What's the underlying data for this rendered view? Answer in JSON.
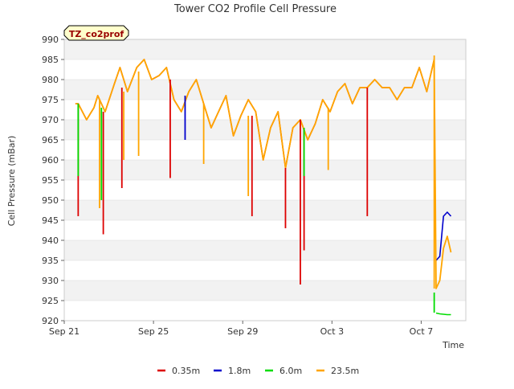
{
  "chart_data": {
    "type": "line",
    "title": "Tower CO2 Profile Cell Pressure",
    "badge": "TZ_co2prof",
    "xlabel": "Time",
    "ylabel": "Cell Pressure (mBar)",
    "ylim": [
      920,
      990
    ],
    "xlim": [
      "2024-09-21",
      "2024-10-09"
    ],
    "x_ticks": [
      "Sep 21",
      "Sep 25",
      "Sep 29",
      "Oct 3",
      "Oct 7"
    ],
    "x_tick_dates": [
      "2024-09-21",
      "2024-09-25",
      "2024-09-29",
      "2024-10-03",
      "2024-10-07"
    ],
    "y_ticks": [
      920,
      925,
      930,
      935,
      940,
      945,
      950,
      955,
      960,
      965,
      970,
      975,
      980,
      985,
      990
    ],
    "grid": true,
    "legend_position": "bottom",
    "colors": {
      "badge_bg": "#ffffcc",
      "badge_text": "#990000",
      "band": "#f2f2f2",
      "grid": "#dcdcdc"
    },
    "series": [
      {
        "name": "0.35m",
        "color": "#dd0000",
        "x": [
          "2024-09-21 12:00",
          "2024-09-21 15:00",
          "2024-09-22 00:00",
          "2024-09-22 08:00",
          "2024-09-22 12:00",
          "2024-09-22 20:00",
          "2024-09-23 06:00",
          "2024-09-23 12:00",
          "2024-09-23 20:00",
          "2024-09-24 06:00",
          "2024-09-24 14:00",
          "2024-09-24 22:00",
          "2024-09-25 06:00",
          "2024-09-25 14:00",
          "2024-09-25 22:00",
          "2024-09-26 06:00",
          "2024-09-26 14:00",
          "2024-09-26 22:00",
          "2024-09-27 06:00",
          "2024-09-27 14:00",
          "2024-09-27 22:00",
          "2024-09-28 06:00",
          "2024-09-28 14:00",
          "2024-09-28 22:00",
          "2024-09-29 06:00",
          "2024-09-29 14:00",
          "2024-09-29 22:00",
          "2024-09-30 06:00",
          "2024-09-30 14:00",
          "2024-09-30 22:00",
          "2024-10-01 06:00",
          "2024-10-01 14:00",
          "2024-10-01 22:00",
          "2024-10-02 06:00",
          "2024-10-02 14:00",
          "2024-10-02 22:00",
          "2024-10-03 06:00",
          "2024-10-03 14:00",
          "2024-10-03 22:00",
          "2024-10-04 06:00",
          "2024-10-04 14:00",
          "2024-10-04 22:00",
          "2024-10-05 06:00",
          "2024-10-05 14:00",
          "2024-10-05 22:00",
          "2024-10-06 06:00",
          "2024-10-06 14:00",
          "2024-10-06 22:00",
          "2024-10-07 06:00",
          "2024-10-07 14:00"
        ],
        "values": [
          974,
          974,
          970,
          973,
          976,
          972,
          979,
          983,
          977,
          983,
          985,
          980,
          981,
          983,
          975,
          972,
          977,
          980,
          974,
          968,
          972,
          976,
          966,
          971,
          975,
          972,
          960,
          968,
          972,
          958,
          968,
          970,
          965,
          969,
          975,
          972,
          977,
          979,
          974,
          978,
          978,
          980,
          978,
          978,
          975,
          978,
          978,
          983,
          977,
          985
        ]
      },
      {
        "name": "1.8m",
        "color": "#0000cc",
        "x": [
          "2024-10-07 16:00",
          "2024-10-07 20:00",
          "2024-10-08 00:00",
          "2024-10-08 04:00",
          "2024-10-08 08:00"
        ],
        "values": [
          935,
          936,
          946,
          947,
          946
        ]
      },
      {
        "name": "6.0m",
        "color": "#00dd00",
        "x": [
          "2024-10-07 16:00",
          "2024-10-07 20:00",
          "2024-10-08 00:00",
          "2024-10-08 04:00",
          "2024-10-08 08:00"
        ],
        "values": [
          921.9,
          921.7,
          921.6,
          921.5,
          921.5
        ]
      },
      {
        "name": "23.5m",
        "color": "#ffa500",
        "x": [
          "2024-09-21 12:00",
          "2024-09-21 15:00",
          "2024-09-22 00:00",
          "2024-09-22 08:00",
          "2024-09-22 12:00",
          "2024-09-22 20:00",
          "2024-09-23 06:00",
          "2024-09-23 12:00",
          "2024-09-23 20:00",
          "2024-09-24 06:00",
          "2024-09-24 14:00",
          "2024-09-24 22:00",
          "2024-09-25 06:00",
          "2024-09-25 14:00",
          "2024-09-25 22:00",
          "2024-09-26 06:00",
          "2024-09-26 14:00",
          "2024-09-26 22:00",
          "2024-09-27 06:00",
          "2024-09-27 14:00",
          "2024-09-27 22:00",
          "2024-09-28 06:00",
          "2024-09-28 14:00",
          "2024-09-28 22:00",
          "2024-09-29 06:00",
          "2024-09-29 14:00",
          "2024-09-29 22:00",
          "2024-09-30 06:00",
          "2024-09-30 14:00",
          "2024-09-30 22:00",
          "2024-10-01 06:00",
          "2024-10-01 14:00",
          "2024-10-01 22:00",
          "2024-10-02 06:00",
          "2024-10-02 14:00",
          "2024-10-02 22:00",
          "2024-10-03 06:00",
          "2024-10-03 14:00",
          "2024-10-03 22:00",
          "2024-10-04 06:00",
          "2024-10-04 14:00",
          "2024-10-04 22:00",
          "2024-10-05 06:00",
          "2024-10-05 14:00",
          "2024-10-05 22:00",
          "2024-10-06 06:00",
          "2024-10-06 14:00",
          "2024-10-06 22:00",
          "2024-10-07 06:00",
          "2024-10-07 14:00",
          "2024-10-07 16:00",
          "2024-10-07 20:00",
          "2024-10-08 00:00",
          "2024-10-08 04:00",
          "2024-10-08 08:00"
        ],
        "values": [
          974,
          974,
          970,
          973,
          976,
          972,
          979,
          983,
          977,
          983,
          985,
          980,
          981,
          983,
          975,
          972,
          977,
          980,
          974,
          968,
          972,
          976,
          966,
          971,
          975,
          972,
          960,
          968,
          972,
          958,
          968,
          970,
          965,
          969,
          975,
          972,
          977,
          979,
          974,
          978,
          978,
          980,
          978,
          978,
          975,
          978,
          978,
          983,
          977,
          985,
          928,
          930,
          938,
          941,
          937
        ]
      }
    ],
    "spikes": [
      {
        "x": "2024-09-21 15:00",
        "series": "0.35m",
        "from": 974,
        "to": 946
      },
      {
        "x": "2024-09-21 15:00",
        "series": "6.0m",
        "from": 974,
        "to": 956
      },
      {
        "x": "2024-09-22 14:00",
        "series": "23.5m",
        "from": 975,
        "to": 948
      },
      {
        "x": "2024-09-22 18:00",
        "series": "0.35m",
        "from": 972,
        "to": 941.5
      },
      {
        "x": "2024-09-22 16:00",
        "series": "6.0m",
        "from": 973,
        "to": 950
      },
      {
        "x": "2024-09-23 14:00",
        "series": "0.35m",
        "from": 978,
        "to": 953
      },
      {
        "x": "2024-09-23 16:00",
        "series": "23.5m",
        "from": 977,
        "to": 960
      },
      {
        "x": "2024-09-24 08:00",
        "series": "23.5m",
        "from": 982,
        "to": 961
      },
      {
        "x": "2024-09-25 18:00",
        "series": "0.35m",
        "from": 980,
        "to": 955.5
      },
      {
        "x": "2024-09-26 10:00",
        "series": "1.8m",
        "from": 976,
        "to": 965
      },
      {
        "x": "2024-09-27 06:00",
        "series": "23.5m",
        "from": 974,
        "to": 959
      },
      {
        "x": "2024-09-29 10:00",
        "series": "0.35m",
        "from": 971,
        "to": 946
      },
      {
        "x": "2024-09-29 06:00",
        "series": "23.5m",
        "from": 971,
        "to": 951
      },
      {
        "x": "2024-09-30 22:00",
        "series": "0.35m",
        "from": 958,
        "to": 943
      },
      {
        "x": "2024-10-01 14:00",
        "series": "0.35m",
        "from": 970,
        "to": 929
      },
      {
        "x": "2024-10-01 18:00",
        "series": "0.35m",
        "from": 968,
        "to": 937.5
      },
      {
        "x": "2024-10-01 18:00",
        "series": "6.0m",
        "from": 968,
        "to": 956
      },
      {
        "x": "2024-10-02 20:00",
        "series": "23.5m",
        "from": 973,
        "to": 957.5
      },
      {
        "x": "2024-10-04 14:00",
        "series": "0.35m",
        "from": 978,
        "to": 946
      },
      {
        "x": "2024-10-07 14:00",
        "series": "23.5m",
        "from": 986,
        "to": 928
      },
      {
        "x": "2024-10-07 14:00",
        "series": "6.0m",
        "from": 927,
        "to": 922
      }
    ]
  }
}
